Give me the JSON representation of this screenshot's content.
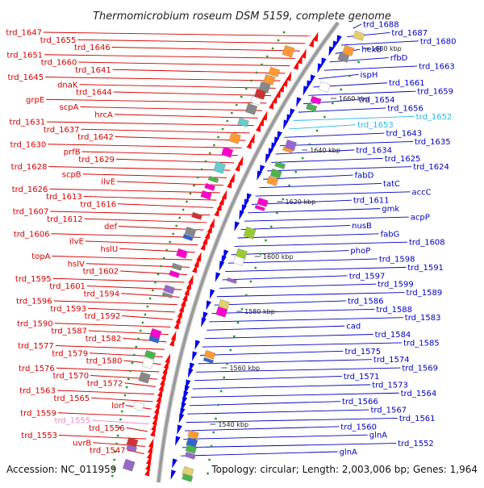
{
  "title": "Thermomicrobium roseum DSM 5159, complete genome",
  "accession": "Accession: NC_011959",
  "topology": "Topology: circular; Length: 2,003,006 bp; Genes: 1,964",
  "colors": {
    "left_labels": "#d40000",
    "right_labels": "#0000c0",
    "highlight_right": "#29b6e8",
    "highlight_left": "#e88ac8",
    "backbone": "#9a9a9a",
    "tick_dots": "#2a9a2a"
  },
  "kbp_marks": [
    "1680 kbp",
    "1660 kbp",
    "1640 kbp",
    "1620 kbp",
    "1600 kbp",
    "1580 kbp",
    "1560 kbp",
    "1540 kbp"
  ],
  "left_labels": [
    "trd_1647",
    "trd_1655",
    "trd_1646",
    "trd_1651",
    "trd_1660",
    "trd_1641",
    "trd_1645",
    "dnaK",
    "trd_1644",
    "grpE",
    "scpA",
    "hrcA",
    "trd_1631",
    "trd_1637",
    "trd_1642",
    "trd_1630",
    "prfB",
    "trd_1629",
    "trd_1628",
    "scpB",
    "ilvE",
    "trd_1626",
    "trd_1613",
    "trd_1616",
    "trd_1607",
    "trd_1612",
    "def",
    "trd_1606",
    "ilvE",
    "hslU",
    "topA",
    "hslV",
    "trd_1602",
    "trd_1595",
    "trd_1601",
    "trd_1594",
    "trd_1596",
    "trd_1593",
    "trd_1592",
    "trd_1590",
    "trd_1587",
    "trd_1582",
    "trd_1577",
    "trd_1579",
    "trd_1580",
    "trd_1576",
    "trd_1570",
    "trd_1572",
    "trd_1563",
    "trd_1565",
    "lon",
    "trd_1559",
    "trd_1555",
    "trd_1556",
    "trd_1553",
    "uvrB",
    "trd_1547"
  ],
  "right_labels": [
    "trd_1688",
    "trd_1687",
    "trd_1680",
    "hexB",
    "rfbD",
    "trd_1663",
    "ispH",
    "trd_1661",
    "trd_1659",
    "trd_1654",
    "trd_1656",
    "trd_1652",
    "trd_1653",
    "trd_1643",
    "trd_1635",
    "trd_1634",
    "trd_1625",
    "trd_1624",
    "fabD",
    "tatC",
    "accC",
    "trd_1611",
    "gmk",
    "acpP",
    "nusB",
    "fabG",
    "trd_1608",
    "phoP",
    "trd_1598",
    "trd_1591",
    "trd_1597",
    "trd_1599",
    "trd_1589",
    "trd_1586",
    "trd_1588",
    "trd_1583",
    "cad",
    "trd_1584",
    "trd_1585",
    "trd_1575",
    "trd_1574",
    "trd_1569",
    "trd_1571",
    "trd_1573",
    "trd_1564",
    "trd_1566",
    "trd_1567",
    "trd_1561",
    "trd_1560",
    "glnA",
    "trd_1552",
    "glnA"
  ]
}
